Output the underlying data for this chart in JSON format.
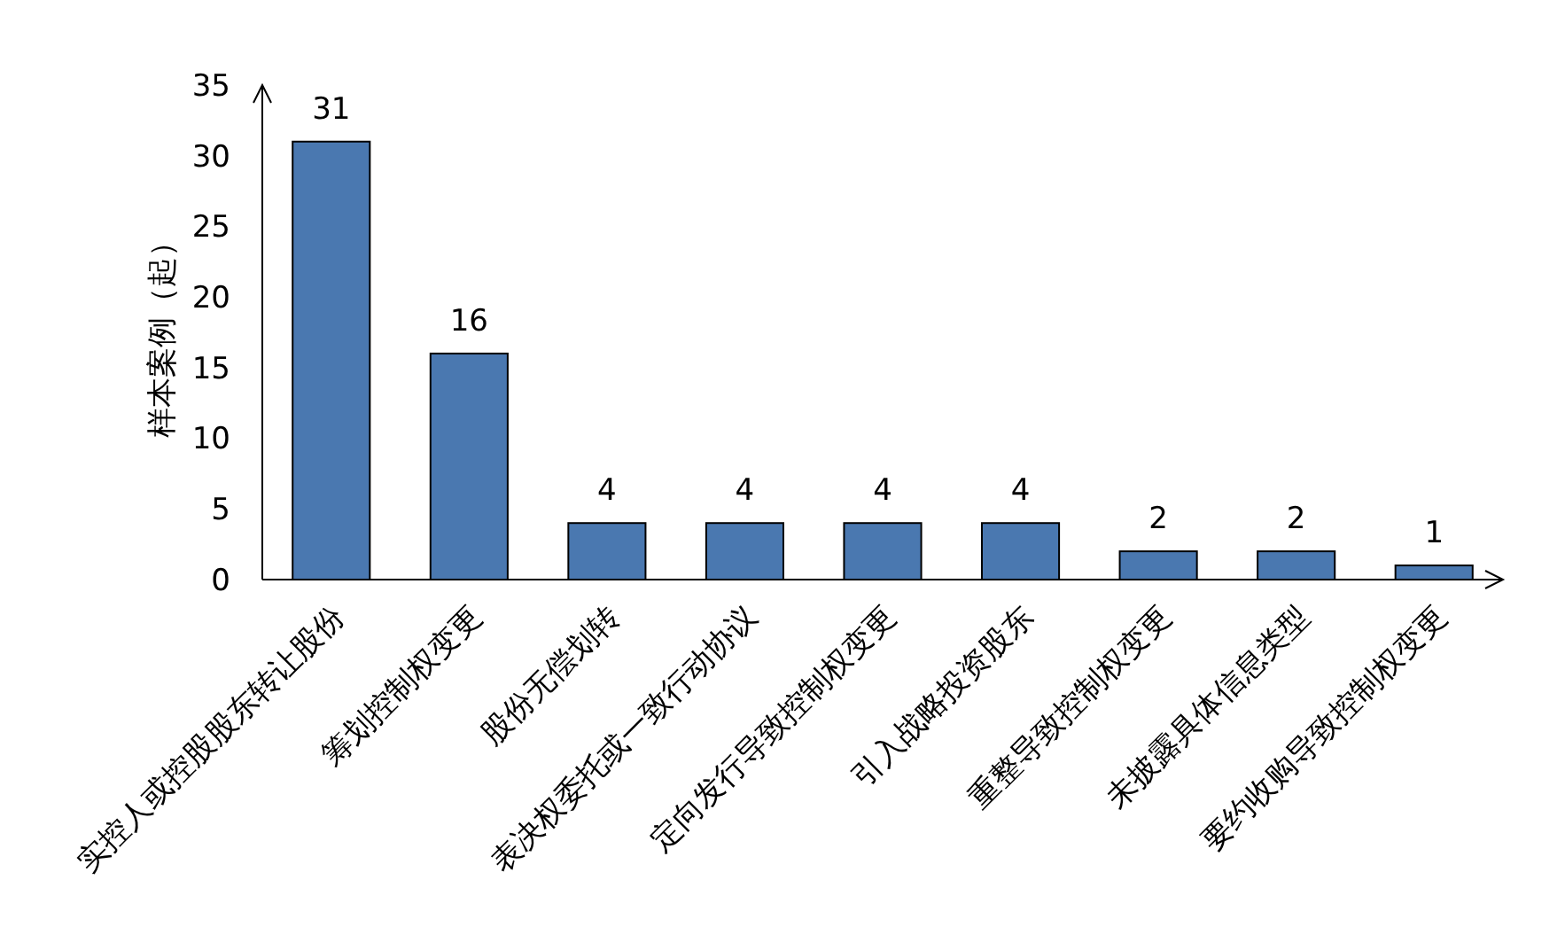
{
  "chart_data": {
    "type": "bar",
    "ylabel": "样本案例（起）",
    "categories": [
      "实控人或控股股东转让股份",
      "筹划控制权变更",
      "股份无偿划转",
      "表决权委托或一致行动协议",
      "定向发行导致控制权变更",
      "引入战略投资股东",
      "重整导致控制权变更",
      "未披露具体信息类型",
      "要约收购导致控制权变更"
    ],
    "values": [
      31,
      16,
      4,
      4,
      4,
      4,
      2,
      2,
      1
    ],
    "color": "#4a78b0",
    "ylim": [
      0,
      35
    ],
    "yticks": [
      0,
      5,
      10,
      15,
      20,
      25,
      30,
      35
    ],
    "grid": false,
    "data_labels": true
  }
}
